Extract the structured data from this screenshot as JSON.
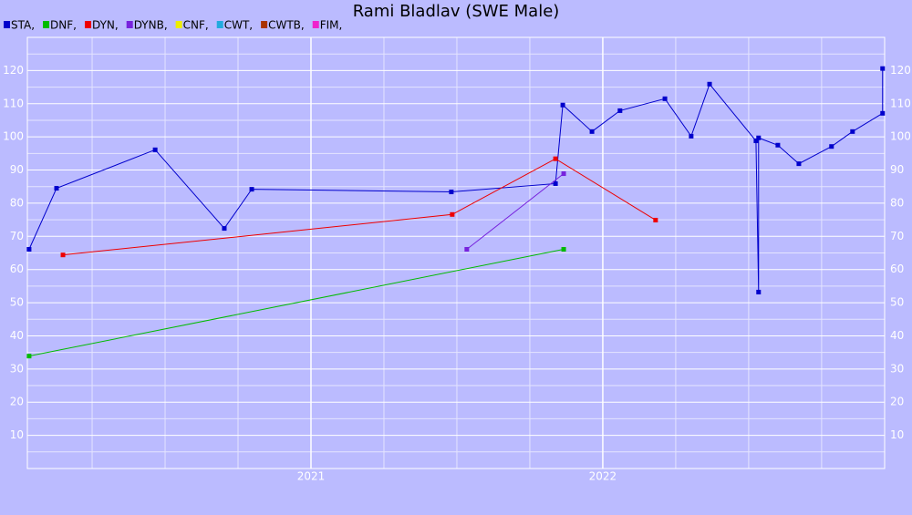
{
  "chart_data": {
    "type": "line",
    "title": "Rami Bladlav (SWE Male)",
    "xlim": [
      2020.028,
      2022.966
    ],
    "xticks": [
      2021,
      2022
    ],
    "minor_xticks": [
      2020.25,
      2020.5,
      2020.75,
      2021.25,
      2021.5,
      2021.75,
      2022.25,
      2022.5,
      2022.75
    ],
    "ylim": [
      0,
      130
    ],
    "yticks": [
      10,
      20,
      30,
      40,
      50,
      60,
      70,
      80,
      90,
      100,
      110,
      120
    ],
    "minor_yticks": [
      5,
      15,
      25,
      35,
      45,
      55,
      65,
      75,
      85,
      95,
      105,
      115,
      125
    ],
    "grid": true,
    "series": [
      {
        "name": "STA,",
        "color": "#0000cc",
        "x": [
          2020.034,
          2020.128,
          2020.466,
          2020.703,
          2020.797,
          2021.481,
          2021.838,
          2021.863,
          2021.963,
          2022.059,
          2022.213,
          2022.303,
          2022.366,
          2022.525,
          2022.534,
          2022.534,
          2022.6,
          2022.672,
          2022.784,
          2022.856,
          2022.959,
          2022.959
        ],
        "values": [
          66.1,
          84.5,
          96.1,
          72.4,
          84.2,
          83.4,
          85.9,
          109.6,
          101.6,
          107.9,
          111.5,
          100.2,
          115.9,
          98.8,
          53.2,
          99.7,
          97.5,
          91.9,
          97.1,
          101.6,
          107.1,
          120.6
        ]
      },
      {
        "name": "DNF,",
        "color": "#00bb00",
        "x": [
          2020.034,
          2021.866
        ],
        "values": [
          33.9,
          66.1
        ]
      },
      {
        "name": "DYN,",
        "color": "#ee0000",
        "x": [
          2020.15,
          2021.484,
          2021.838,
          2022.181
        ],
        "values": [
          64.4,
          76.6,
          93.4,
          74.9
        ]
      },
      {
        "name": "DYNB,",
        "color": "#7722dd",
        "x": [
          2021.534,
          2021.866
        ],
        "values": [
          66.1,
          88.9
        ]
      },
      {
        "name": "CNF,",
        "color": "#eeee00",
        "x": [],
        "values": []
      },
      {
        "name": "CWT,",
        "color": "#22aadd",
        "x": [],
        "values": []
      },
      {
        "name": "CWTB,",
        "color": "#aa3300",
        "x": [],
        "values": []
      },
      {
        "name": "FIM,",
        "color": "#ee22cc",
        "x": [],
        "values": []
      }
    ]
  }
}
